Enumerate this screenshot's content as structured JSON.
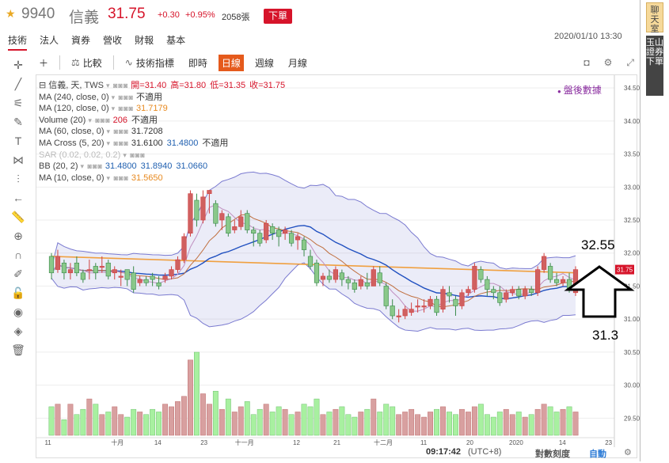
{
  "stock": {
    "code": "9940",
    "name": "信義",
    "price": "31.75",
    "change": "+0.30",
    "change_pct": "+0.95%",
    "volume": "2058張",
    "order_button": "下單"
  },
  "tabs": [
    "技術",
    "法人",
    "資券",
    "營收",
    "財報",
    "基本"
  ],
  "timestamp": "2020/01/10 13:30",
  "side_buttons": [
    "聊天室",
    "玉山證券下單"
  ],
  "toolbar": {
    "compare": "比較",
    "indicators": "技術指標",
    "realtime": "即時",
    "daily": "日線",
    "weekly": "週線",
    "monthly": "月線"
  },
  "legend": [
    {
      "name": "信義, 天, TWS",
      "parts": [
        {
          "t": "開=31.40",
          "c": "red"
        },
        {
          "t": "高=31.80",
          "c": "red"
        },
        {
          "t": "低=31.35",
          "c": "red"
        },
        {
          "t": "收=31.75",
          "c": "red"
        }
      ]
    },
    {
      "name": "MA (240, close, 0)",
      "parts": [
        {
          "t": "不適用",
          "c": "dark"
        }
      ]
    },
    {
      "name": "MA (120, close, 0)",
      "parts": [
        {
          "t": "31.7179",
          "c": "orange"
        }
      ]
    },
    {
      "name": "Volume (20)",
      "parts": [
        {
          "t": "206",
          "c": "red"
        },
        {
          "t": "不適用",
          "c": "dark"
        }
      ]
    },
    {
      "name": "MA (60, close, 0)",
      "parts": [
        {
          "t": "31.7208",
          "c": "dark"
        }
      ]
    },
    {
      "name": "MA Cross (5, 20)",
      "parts": [
        {
          "t": "31.6100",
          "c": "dark"
        },
        {
          "t": "31.4800",
          "c": "blue"
        },
        {
          "t": "不適用",
          "c": "dark"
        }
      ]
    },
    {
      "name": "SAR (0.02, 0.02, 0.2)",
      "parts": [],
      "faded": true
    },
    {
      "name": "BB (20, 2)",
      "parts": [
        {
          "t": "31.4800",
          "c": "blue"
        },
        {
          "t": "31.8940",
          "c": "blue"
        },
        {
          "t": "31.0660",
          "c": "blue"
        }
      ]
    },
    {
      "name": "MA (10, close, 0)",
      "parts": [
        {
          "t": "31.5650",
          "c": "orange"
        }
      ]
    }
  ],
  "after_market": "盤後數據",
  "price_axis": [
    "34.50",
    "34.00",
    "33.50",
    "33.00",
    "32.50",
    "32.00",
    "31.50",
    "31.00",
    "30.50",
    "30.00",
    "29.50"
  ],
  "current_price_tag": "31.75",
  "x_axis": [
    "11",
    "十月",
    "14",
    "23",
    "十一月",
    "12",
    "21",
    "十二月",
    "11",
    "20",
    "2020",
    "14",
    "23"
  ],
  "bottom": {
    "time": "09:17:42",
    "tz": "(UTC+8)",
    "log": "對數刻度",
    "auto": "自動"
  },
  "annotations": {
    "top": "32.55",
    "bottom": "31.3"
  },
  "chart_data": {
    "type": "candlestick",
    "note_series": [
      "price",
      "MA",
      "BB",
      "volume"
    ],
    "ylim": [
      29.3,
      34.55
    ],
    "candles": [
      [
        31.95,
        31.7,
        32.0,
        31.6
      ],
      [
        31.75,
        31.95,
        32.05,
        31.7
      ],
      [
        31.85,
        31.7,
        31.9,
        31.6
      ],
      [
        31.7,
        31.75,
        31.85,
        31.6
      ],
      [
        31.85,
        31.7,
        31.95,
        31.65
      ],
      [
        31.7,
        31.6,
        31.75,
        31.55
      ],
      [
        31.75,
        31.75,
        31.9,
        31.6
      ],
      [
        31.8,
        31.7,
        31.85,
        31.6
      ],
      [
        31.8,
        31.8,
        31.95,
        31.7
      ],
      [
        31.85,
        31.65,
        31.9,
        31.6
      ],
      [
        31.7,
        31.75,
        31.8,
        31.6
      ],
      [
        31.65,
        31.65,
        31.75,
        31.5
      ],
      [
        31.75,
        31.6,
        31.75,
        31.5
      ],
      [
        31.7,
        31.45,
        31.8,
        31.4
      ],
      [
        31.55,
        31.6,
        31.65,
        31.5
      ],
      [
        31.6,
        31.55,
        31.65,
        31.5
      ],
      [
        31.65,
        31.6,
        31.7,
        31.5
      ],
      [
        31.55,
        31.5,
        31.65,
        31.45
      ],
      [
        31.6,
        31.65,
        31.7,
        31.55
      ],
      [
        31.65,
        31.75,
        31.8,
        31.6
      ],
      [
        31.75,
        31.9,
        31.95,
        31.7
      ],
      [
        31.9,
        32.25,
        32.3,
        31.85
      ],
      [
        32.3,
        32.9,
        32.95,
        32.25
      ],
      [
        32.8,
        32.5,
        32.9,
        32.4
      ],
      [
        32.5,
        32.85,
        32.95,
        32.45
      ],
      [
        32.9,
        32.95,
        32.95,
        32.6
      ],
      [
        32.75,
        32.45,
        32.8,
        32.4
      ],
      [
        32.5,
        32.6,
        32.65,
        32.35
      ],
      [
        32.55,
        32.3,
        32.6,
        32.25
      ],
      [
        32.35,
        32.4,
        32.5,
        32.3
      ],
      [
        32.4,
        32.55,
        32.65,
        32.35
      ],
      [
        32.6,
        32.35,
        32.65,
        32.3
      ],
      [
        32.35,
        32.3,
        32.4,
        32.1
      ],
      [
        32.3,
        32.15,
        32.35,
        32.1
      ],
      [
        32.2,
        32.45,
        32.5,
        32.15
      ],
      [
        32.4,
        32.3,
        32.45,
        32.2
      ],
      [
        32.35,
        32.25,
        32.4,
        32.1
      ],
      [
        32.3,
        32.35,
        32.4,
        32.2
      ],
      [
        32.3,
        32.15,
        32.35,
        32.1
      ],
      [
        32.2,
        32.25,
        32.3,
        32.05
      ],
      [
        32.2,
        32.05,
        32.25,
        31.95
      ],
      [
        31.95,
        31.8,
        32.05,
        31.75
      ],
      [
        31.85,
        31.55,
        31.9,
        31.5
      ],
      [
        31.6,
        31.65,
        31.7,
        31.5
      ],
      [
        31.65,
        31.6,
        31.75,
        31.55
      ],
      [
        31.6,
        31.75,
        31.8,
        31.55
      ],
      [
        31.7,
        31.6,
        31.75,
        31.5
      ],
      [
        31.6,
        31.55,
        31.65,
        31.45
      ],
      [
        31.55,
        31.45,
        31.6,
        31.4
      ],
      [
        31.5,
        31.6,
        31.65,
        31.45
      ],
      [
        31.55,
        31.5,
        31.7,
        31.45
      ],
      [
        31.5,
        31.75,
        31.8,
        31.5
      ],
      [
        31.7,
        31.55,
        31.8,
        31.5
      ],
      [
        31.5,
        31.2,
        31.55,
        31.15
      ],
      [
        31.2,
        31.05,
        31.3,
        31.0
      ],
      [
        31.05,
        31.05,
        31.15,
        30.95
      ],
      [
        31.05,
        31.15,
        31.2,
        31.0
      ],
      [
        31.1,
        31.15,
        31.25,
        31.05
      ],
      [
        31.2,
        31.2,
        31.3,
        31.1
      ],
      [
        31.2,
        31.2,
        31.3,
        31.1
      ],
      [
        31.2,
        31.3,
        31.35,
        31.15
      ],
      [
        31.3,
        31.1,
        31.35,
        31.05
      ],
      [
        31.15,
        31.45,
        31.5,
        31.1
      ],
      [
        31.4,
        31.35,
        31.5,
        31.25
      ],
      [
        31.3,
        31.2,
        31.35,
        31.05
      ],
      [
        31.2,
        31.4,
        31.45,
        31.15
      ],
      [
        31.4,
        31.45,
        31.5,
        31.35
      ],
      [
        31.45,
        31.8,
        31.85,
        31.4
      ],
      [
        31.75,
        31.6,
        31.8,
        31.55
      ],
      [
        31.6,
        31.45,
        31.65,
        31.35
      ],
      [
        31.45,
        31.4,
        31.5,
        31.3
      ],
      [
        31.4,
        31.25,
        31.5,
        31.2
      ],
      [
        31.3,
        31.4,
        31.45,
        31.25
      ],
      [
        31.4,
        31.45,
        31.5,
        31.35
      ],
      [
        31.45,
        31.35,
        31.5,
        31.3
      ],
      [
        31.35,
        31.45,
        31.5,
        31.3
      ],
      [
        31.45,
        31.4,
        31.5,
        31.35
      ],
      [
        31.4,
        31.75,
        31.8,
        31.35
      ],
      [
        31.75,
        31.95,
        32.0,
        31.7
      ],
      [
        31.8,
        31.6,
        31.85,
        31.55
      ],
      [
        31.6,
        31.55,
        31.7,
        31.5
      ],
      [
        31.55,
        31.6,
        31.65,
        31.5
      ],
      [
        31.6,
        31.45,
        31.7,
        31.4
      ],
      [
        31.4,
        31.75,
        31.8,
        31.35
      ]
    ],
    "volumes": [
      55,
      60,
      30,
      60,
      40,
      50,
      70,
      60,
      40,
      45,
      55,
      40,
      35,
      50,
      45,
      40,
      50,
      45,
      60,
      55,
      65,
      75,
      145,
      160,
      80,
      60,
      85,
      50,
      70,
      45,
      55,
      65,
      40,
      50,
      60,
      45,
      55,
      50,
      40,
      45,
      60,
      55,
      70,
      40,
      45,
      50,
      55,
      40,
      35,
      45,
      50,
      70,
      45,
      60,
      55,
      40,
      45,
      50,
      40,
      35,
      45,
      50,
      55,
      45,
      40,
      50,
      45,
      55,
      60,
      40,
      35,
      45,
      50,
      40,
      45,
      35,
      40,
      50,
      60,
      55,
      45,
      50,
      55,
      45
    ]
  }
}
